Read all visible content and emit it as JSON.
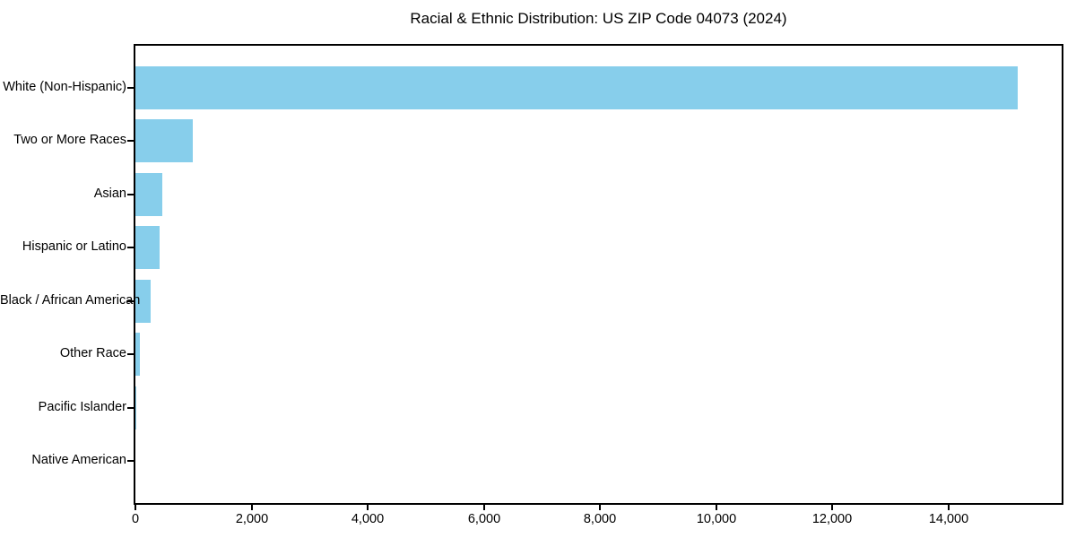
{
  "figure": {
    "background": "#ffffff"
  },
  "chart_data": {
    "type": "bar",
    "orientation": "horizontal",
    "title": "Racial & Ethnic Distribution: US ZIP Code 04073 (2024)",
    "categories": [
      "White (Non-Hispanic)",
      "Two or More Races",
      "Asian",
      "Hispanic or Latino",
      "Black / African American",
      "Other Race",
      "Pacific Islander",
      "Native American"
    ],
    "values": [
      15200,
      985,
      465,
      410,
      265,
      80,
      14,
      3
    ],
    "bar_color": "#87CEEB",
    "axis_color": "#000000",
    "text_color": "#000000",
    "xlabel": "",
    "ylabel": "",
    "xlim": [
      0,
      15950
    ],
    "x_ticks": [
      0,
      2000,
      4000,
      6000,
      8000,
      10000,
      12000,
      14000
    ],
    "x_tick_labels": [
      "0",
      "2,000",
      "4,000",
      "6,000",
      "8,000",
      "10,000",
      "12,000",
      "14,000"
    ],
    "grid": false,
    "legend": "none"
  }
}
